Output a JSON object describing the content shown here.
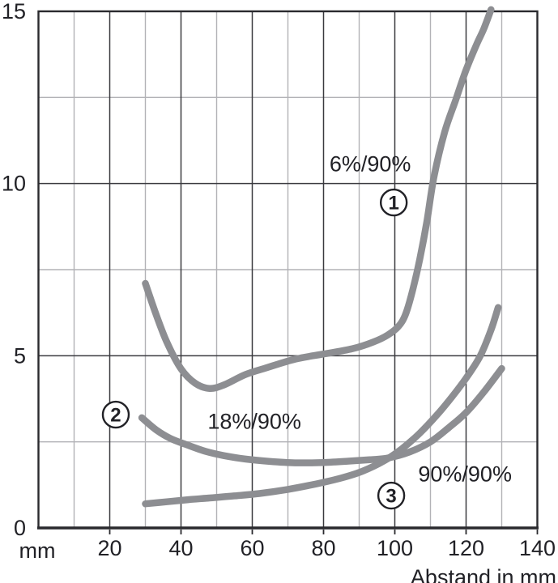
{
  "chart_data": {
    "type": "line",
    "title": "",
    "xlabel": "Abstand in mm",
    "ylabel": "",
    "y_unit": "mm",
    "xlim": [
      0,
      140
    ],
    "ylim": [
      0,
      15
    ],
    "grid": true,
    "legend_position": "none",
    "x_major_ticks": [
      20,
      40,
      60,
      80,
      100,
      120,
      140
    ],
    "x_minor_ticks": [
      10,
      30,
      50,
      70,
      90,
      110,
      130
    ],
    "y_major_ticks": [
      0,
      5,
      10,
      15
    ],
    "y_minor_ticks": [
      2.5,
      7.5,
      12.5
    ],
    "series": [
      {
        "id": "1",
        "label": "6%/90%",
        "points": [
          [
            30,
            7.1
          ],
          [
            33,
            6.2
          ],
          [
            36,
            5.4
          ],
          [
            40,
            4.62
          ],
          [
            44,
            4.2
          ],
          [
            48,
            4.05
          ],
          [
            52,
            4.15
          ],
          [
            58,
            4.45
          ],
          [
            64,
            4.65
          ],
          [
            72,
            4.9
          ],
          [
            80,
            5.05
          ],
          [
            88,
            5.2
          ],
          [
            94,
            5.4
          ],
          [
            98,
            5.6
          ],
          [
            101,
            5.85
          ],
          [
            103,
            6.2
          ],
          [
            105,
            6.9
          ],
          [
            107,
            7.8
          ],
          [
            109,
            8.9
          ],
          [
            111,
            10.2
          ],
          [
            114,
            11.5
          ],
          [
            117,
            12.4
          ],
          [
            120,
            13.3
          ],
          [
            123,
            14.05
          ],
          [
            125,
            14.5
          ],
          [
            127,
            15.05
          ]
        ]
      },
      {
        "id": "2",
        "label": "18%/90%",
        "points": [
          [
            29,
            3.2
          ],
          [
            33,
            2.85
          ],
          [
            37,
            2.6
          ],
          [
            42,
            2.4
          ],
          [
            47,
            2.22
          ],
          [
            52,
            2.1
          ],
          [
            58,
            2.0
          ],
          [
            65,
            1.93
          ],
          [
            72,
            1.89
          ],
          [
            80,
            1.9
          ],
          [
            87,
            1.94
          ],
          [
            93,
            1.98
          ],
          [
            98,
            2.03
          ],
          [
            104,
            2.2
          ],
          [
            110,
            2.5
          ],
          [
            115,
            2.9
          ],
          [
            120,
            3.35
          ],
          [
            125,
            3.95
          ],
          [
            130,
            4.63
          ]
        ]
      },
      {
        "id": "3",
        "label": "90%/90%",
        "points": [
          [
            30,
            0.7
          ],
          [
            36,
            0.76
          ],
          [
            42,
            0.82
          ],
          [
            48,
            0.87
          ],
          [
            55,
            0.93
          ],
          [
            62,
            1.0
          ],
          [
            70,
            1.12
          ],
          [
            78,
            1.28
          ],
          [
            85,
            1.45
          ],
          [
            91,
            1.65
          ],
          [
            97,
            1.95
          ],
          [
            102,
            2.3
          ],
          [
            107,
            2.75
          ],
          [
            112,
            3.3
          ],
          [
            116,
            3.8
          ],
          [
            120,
            4.35
          ],
          [
            124,
            5.0
          ],
          [
            127,
            5.75
          ],
          [
            129,
            6.4
          ]
        ]
      }
    ],
    "annotations": [
      {
        "kind": "text",
        "label": "6%/90%",
        "x": 93.1,
        "y": 10.58
      },
      {
        "kind": "circled",
        "label": "1",
        "x": 99.7,
        "y": 9.45
      },
      {
        "kind": "text",
        "label": "18%/90%",
        "x": 60.6,
        "y": 3.1
      },
      {
        "kind": "circled",
        "label": "2",
        "x": 21.7,
        "y": 3.29
      },
      {
        "kind": "text",
        "label": "90%/90%",
        "x": 119.7,
        "y": 1.58
      },
      {
        "kind": "circled",
        "label": "3",
        "x": 99.0,
        "y": 0.94
      }
    ],
    "colors": {
      "curve": "#8d8e92",
      "grid_minor": "#b2b2b6",
      "grid_major": "#3a3a3f",
      "axis_border": "#2a2a2e",
      "text": "#212126",
      "background": "#ffffff"
    }
  }
}
